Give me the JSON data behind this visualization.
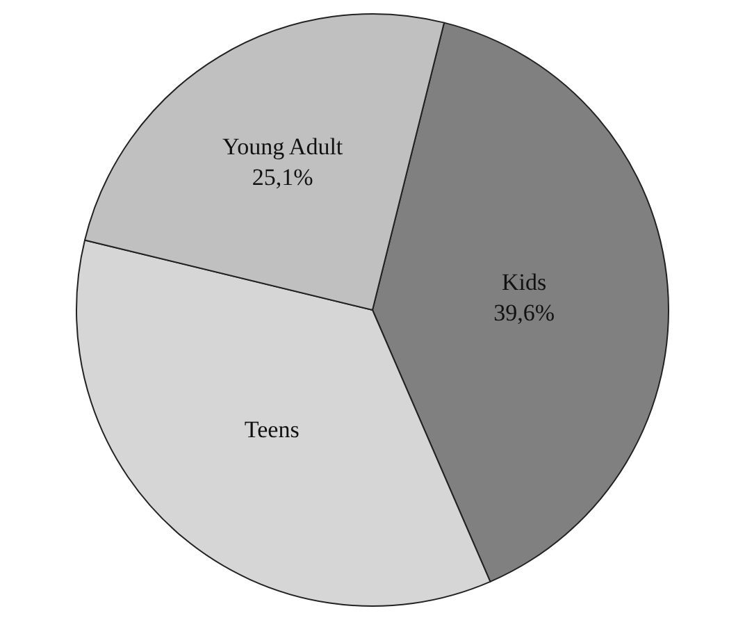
{
  "chart_data": {
    "type": "pie",
    "categories": [
      "Kids",
      "Teens",
      "Young Adult"
    ],
    "values": [
      39.6,
      35.3,
      25.1
    ],
    "value_labels": [
      "39,6%",
      null,
      "25,1%"
    ],
    "colors": [
      "#808080",
      "#d6d6d6",
      "#c0c0c0"
    ],
    "legend": false
  }
}
